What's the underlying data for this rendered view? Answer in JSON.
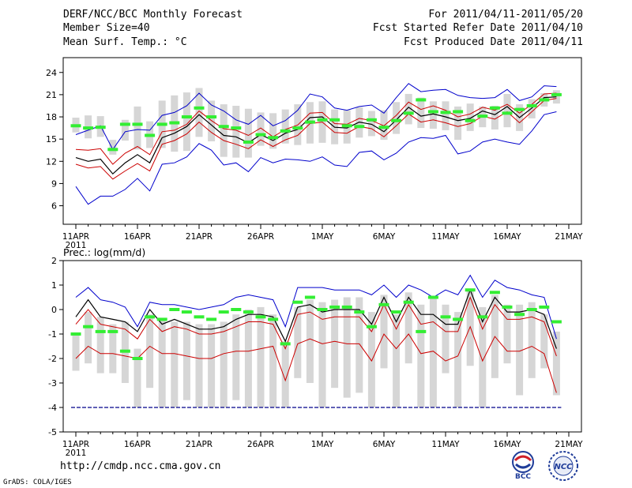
{
  "header": {
    "title": "DERF/NCC/BCC Monthly Forecast",
    "member_size": "Member Size=40",
    "variable": "Mean Surf. Temp.: °C",
    "period": "For 2011/04/11-2011/05/20",
    "started": "Fcst Started Refer Date 2011/04/10",
    "produced": "Fcst Produced Date 2011/04/11"
  },
  "footer": {
    "url": "http://cmdp.ncc.cma.gov.cn",
    "grads": "GrADS: COLA/IGES",
    "logo_bcc": "BCC",
    "logo_ncc": "NCC"
  },
  "colors": {
    "ensemble_max_min": "#0000cc",
    "pct_band": "#cc0000",
    "mean": "#000000",
    "member_bar": "#d6d6d6",
    "climatology": "#33ee33",
    "threshold": "#00008b"
  },
  "chart_data": [
    {
      "type": "line",
      "title": "Mean Surf. Temp.: °C",
      "x": [
        "11APR",
        "12APR",
        "13APR",
        "14APR",
        "15APR",
        "16APR",
        "17APR",
        "18APR",
        "19APR",
        "20APR",
        "21APR",
        "22APR",
        "23APR",
        "24APR",
        "25APR",
        "26APR",
        "27APR",
        "28APR",
        "29APR",
        "30APR",
        "1MAY",
        "2MAY",
        "3MAY",
        "4MAY",
        "5MAY",
        "6MAY",
        "7MAY",
        "8MAY",
        "9MAY",
        "10MAY",
        "11MAY",
        "12MAY",
        "13MAY",
        "14MAY",
        "15MAY",
        "16MAY",
        "17MAY",
        "18MAY",
        "19MAY",
        "20MAY"
      ],
      "xticks": [
        "11APR",
        "16APR",
        "21APR",
        "26APR",
        "1MAY",
        "6MAY",
        "11MAY",
        "16MAY",
        "21MAY"
      ],
      "xtick_year": "2011",
      "yticks": [
        6,
        9,
        12,
        15,
        18,
        21,
        24
      ],
      "ylim": [
        3.5,
        26
      ],
      "series": [
        {
          "name": "max",
          "values": [
            15.6,
            16.2,
            16.8,
            13.6,
            16.0,
            16.3,
            16.2,
            18.2,
            18.6,
            19.5,
            21.2,
            19.6,
            18.8,
            17.6,
            17.0,
            18.2,
            16.8,
            17.5,
            18.9,
            21.1,
            20.7,
            19.2,
            18.9,
            19.4,
            19.6,
            18.5,
            20.6,
            22.5,
            21.4,
            21.6,
            21.7,
            20.9,
            20.6,
            20.5,
            20.6,
            21.7,
            20.2,
            20.7,
            22.2,
            22.1
          ]
        },
        {
          "name": "upper",
          "values": [
            13.6,
            13.5,
            13.7,
            11.6,
            13.1,
            14.0,
            12.9,
            16.0,
            16.2,
            17.0,
            18.8,
            17.5,
            16.4,
            16.2,
            15.5,
            16.5,
            15.3,
            16.3,
            16.9,
            18.5,
            18.6,
            17.1,
            17.0,
            17.8,
            17.5,
            16.8,
            18.2,
            20.0,
            19.0,
            19.5,
            18.9,
            18.0,
            18.4,
            19.3,
            18.9,
            19.7,
            18.5,
            19.7,
            21.1,
            21.2
          ]
        },
        {
          "name": "mean",
          "values": [
            12.5,
            12.0,
            12.3,
            10.3,
            11.8,
            12.9,
            11.8,
            15.2,
            15.8,
            16.7,
            18.3,
            16.9,
            15.5,
            15.3,
            14.5,
            15.6,
            14.8,
            15.8,
            16.3,
            17.9,
            18.0,
            16.6,
            16.5,
            17.3,
            17.0,
            16.0,
            17.6,
            19.3,
            18.1,
            18.4,
            18.0,
            17.5,
            17.8,
            18.8,
            18.3,
            19.4,
            17.9,
            19.2,
            20.6,
            20.7
          ]
        },
        {
          "name": "lower",
          "values": [
            11.6,
            11.1,
            11.3,
            9.6,
            10.7,
            11.7,
            10.7,
            14.3,
            14.8,
            15.7,
            17.3,
            15.9,
            14.8,
            14.3,
            13.7,
            14.9,
            14.0,
            14.9,
            15.5,
            17.1,
            17.3,
            15.9,
            15.8,
            16.7,
            16.4,
            15.3,
            16.8,
            18.4,
            17.3,
            17.6,
            17.2,
            16.7,
            17.1,
            18.1,
            17.7,
            18.7,
            17.2,
            18.7,
            20.2,
            20.5
          ]
        },
        {
          "name": "min",
          "values": [
            8.6,
            6.2,
            7.3,
            7.3,
            8.2,
            9.7,
            8.0,
            11.6,
            11.8,
            12.6,
            14.4,
            13.5,
            11.5,
            11.8,
            10.6,
            12.5,
            11.8,
            12.3,
            12.2,
            12.0,
            12.6,
            11.5,
            11.3,
            13.2,
            13.4,
            12.2,
            13.1,
            14.6,
            15.2,
            15.1,
            15.5,
            13.0,
            13.4,
            14.6,
            15.0,
            14.6,
            14.3,
            16.1,
            18.3,
            18.7
          ]
        },
        {
          "name": "member_high",
          "values": [
            17.9,
            18.2,
            18.1,
            14.9,
            17.6,
            19.4,
            17.4,
            20.2,
            20.9,
            21.3,
            21.9,
            20.2,
            19.7,
            19.5,
            19.1,
            18.6,
            18.5,
            19.0,
            19.7,
            20.0,
            20.1,
            19.0,
            18.9,
            19.3,
            18.8,
            18.9,
            20.0,
            21.1,
            20.6,
            20.1,
            20.1,
            19.4,
            19.8,
            19.4,
            19.5,
            21.1,
            19.7,
            20.4,
            21.2,
            21.6
          ]
        },
        {
          "name": "member_low",
          "values": [
            15.9,
            15.1,
            15.3,
            12.9,
            14.8,
            13.6,
            13.8,
            13.8,
            13.3,
            13.4,
            15.3,
            14.7,
            12.6,
            12.5,
            12.5,
            14.1,
            13.7,
            14.4,
            14.2,
            14.4,
            14.5,
            14.3,
            14.4,
            15.2,
            15.4,
            14.9,
            15.7,
            17.0,
            16.5,
            16.4,
            16.2,
            14.9,
            16.1,
            16.6,
            16.3,
            16.6,
            16.1,
            17.8,
            19.4,
            19.8
          ]
        },
        {
          "name": "climatology",
          "values": [
            16.8,
            16.5,
            16.6,
            13.6,
            17.0,
            17.0,
            15.5,
            17.0,
            17.2,
            18.0,
            19.2,
            18.0,
            16.7,
            16.5,
            14.6,
            15.6,
            15.2,
            16.1,
            16.5,
            17.3,
            17.6,
            17.6,
            16.8,
            16.7,
            17.6,
            16.6,
            17.5,
            18.5,
            20.3,
            18.7,
            18.6,
            18.7,
            17.5,
            18.1,
            19.2,
            18.5,
            19.0,
            19.5,
            20.3,
            21.0
          ]
        }
      ]
    },
    {
      "type": "line",
      "title": "Prec.: log(mm/d)",
      "x": [
        "11APR",
        "12APR",
        "13APR",
        "14APR",
        "15APR",
        "16APR",
        "17APR",
        "18APR",
        "19APR",
        "20APR",
        "21APR",
        "22APR",
        "23APR",
        "24APR",
        "25APR",
        "26APR",
        "27APR",
        "28APR",
        "29APR",
        "30APR",
        "1MAY",
        "2MAY",
        "3MAY",
        "4MAY",
        "5MAY",
        "6MAY",
        "7MAY",
        "8MAY",
        "9MAY",
        "10MAY",
        "11MAY",
        "12MAY",
        "13MAY",
        "14MAY",
        "15MAY",
        "16MAY",
        "17MAY",
        "18MAY",
        "19MAY",
        "20MAY"
      ],
      "xticks": [
        "11APR",
        "16APR",
        "21APR",
        "26APR",
        "1MAY",
        "6MAY",
        "11MAY",
        "16MAY",
        "21MAY"
      ],
      "xtick_year": "2011",
      "yticks": [
        -5,
        -4,
        -3,
        -2,
        -1,
        0,
        1,
        2
      ],
      "ylim": [
        -5,
        2
      ],
      "threshold": -4,
      "series": [
        {
          "name": "max",
          "values": [
            0.5,
            0.9,
            0.4,
            0.3,
            0.1,
            -0.7,
            0.3,
            0.2,
            0.2,
            0.1,
            0.0,
            0.1,
            0.2,
            0.5,
            0.6,
            0.5,
            0.4,
            -0.7,
            0.9,
            0.9,
            0.9,
            0.8,
            0.8,
            0.8,
            0.6,
            1.0,
            0.5,
            1.0,
            0.8,
            0.5,
            0.8,
            0.6,
            1.4,
            0.5,
            1.2,
            0.9,
            0.8,
            0.6,
            0.5,
            -1.2
          ]
        },
        {
          "name": "mean",
          "values": [
            -0.3,
            0.4,
            -0.3,
            -0.4,
            -0.5,
            -0.9,
            0.0,
            -0.6,
            -0.4,
            -0.6,
            -0.8,
            -0.8,
            -0.7,
            -0.4,
            -0.2,
            -0.2,
            -0.3,
            -1.3,
            0.1,
            0.2,
            -0.1,
            0.0,
            0.0,
            0.0,
            -0.6,
            0.5,
            -0.5,
            0.5,
            -0.2,
            -0.2,
            -0.6,
            -0.6,
            0.8,
            -0.5,
            0.5,
            -0.1,
            -0.1,
            0.0,
            -0.2,
            -1.6
          ]
        },
        {
          "name": "upper",
          "values": [
            -0.6,
            0.0,
            -0.6,
            -0.7,
            -0.8,
            -1.2,
            -0.4,
            -0.9,
            -0.7,
            -0.8,
            -1.0,
            -1.0,
            -0.9,
            -0.7,
            -0.5,
            -0.5,
            -0.6,
            -1.6,
            -0.2,
            -0.1,
            -0.4,
            -0.3,
            -0.3,
            -0.3,
            -0.9,
            0.2,
            -0.8,
            0.2,
            -0.6,
            -0.5,
            -0.9,
            -0.9,
            0.5,
            -0.8,
            0.2,
            -0.4,
            -0.4,
            -0.3,
            -0.5,
            -1.9
          ]
        },
        {
          "name": "lower",
          "values": [
            -2.0,
            -1.5,
            -1.8,
            -1.8,
            -1.9,
            -2.0,
            -1.5,
            -1.8,
            -1.8,
            -1.9,
            -2.0,
            -2.0,
            -1.8,
            -1.7,
            -1.7,
            -1.6,
            -1.5,
            -2.9,
            -1.4,
            -1.2,
            -1.4,
            -1.3,
            -1.4,
            -1.4,
            -2.1,
            -1.0,
            -1.6,
            -1.0,
            -1.8,
            -1.7,
            -2.1,
            -1.9,
            -0.7,
            -2.1,
            -1.1,
            -1.7,
            -1.7,
            -1.5,
            -1.8,
            -3.4
          ]
        },
        {
          "name": "member_high",
          "values": [
            -1.0,
            -0.1,
            -0.3,
            -0.6,
            -0.5,
            -1.6,
            -0.2,
            -0.4,
            -0.5,
            -0.5,
            -0.6,
            -0.6,
            -0.5,
            -0.2,
            0.0,
            0.1,
            -0.2,
            -1.3,
            0.1,
            0.4,
            0.3,
            0.4,
            0.5,
            0.5,
            -0.1,
            0.6,
            -0.2,
            0.7,
            0.2,
            0.5,
            0.2,
            -0.1,
            0.8,
            0.1,
            0.6,
            0.2,
            0.2,
            0.3,
            -0.2,
            -0.9
          ]
        },
        {
          "name": "member_low",
          "values": [
            -2.5,
            -2.2,
            -2.6,
            -2.6,
            -3.0,
            -4.0,
            -3.2,
            -4.0,
            -4.0,
            -3.7,
            -4.0,
            -4.0,
            -4.0,
            -3.7,
            -4.0,
            -4.0,
            -4.0,
            -4.0,
            -2.8,
            -3.0,
            -4.0,
            -3.2,
            -3.6,
            -3.4,
            -4.0,
            -2.4,
            -4.0,
            -2.2,
            -4.0,
            -4.0,
            -2.6,
            -4.0,
            -2.3,
            -4.0,
            -2.8,
            -2.2,
            -3.5,
            -2.8,
            -2.4,
            -3.5
          ]
        },
        {
          "name": "climatology",
          "values": [
            -1.0,
            -0.7,
            -0.9,
            -0.9,
            -1.7,
            -2.0,
            -0.3,
            -0.4,
            0.0,
            -0.1,
            -0.3,
            -0.4,
            -0.1,
            0.0,
            -0.1,
            -0.3,
            -0.4,
            -1.4,
            0.3,
            0.5,
            0.0,
            0.1,
            0.1,
            -0.1,
            -0.7,
            0.2,
            -0.1,
            0.3,
            -0.9,
            0.5,
            -0.3,
            -0.4,
            0.8,
            -0.3,
            0.7,
            0.1,
            -0.2,
            0.0,
            0.1,
            -0.5
          ]
        }
      ]
    }
  ]
}
